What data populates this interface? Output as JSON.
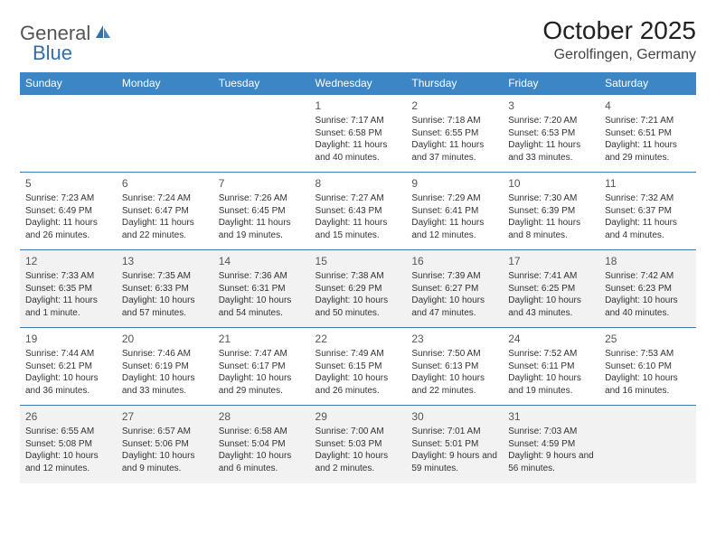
{
  "logo": {
    "word1": "General",
    "word2": "Blue"
  },
  "title": "October 2025",
  "location": "Gerolfingen, Germany",
  "colors": {
    "header_bg": "#3d86c6",
    "header_text": "#ffffff",
    "border": "#3d7ab0",
    "alt_row": "#f2f2f2",
    "logo_gray": "#555555",
    "logo_blue": "#2f6fab"
  },
  "day_headers": [
    "Sunday",
    "Monday",
    "Tuesday",
    "Wednesday",
    "Thursday",
    "Friday",
    "Saturday"
  ],
  "weeks": [
    [
      null,
      null,
      null,
      {
        "n": "1",
        "sr": "Sunrise: 7:17 AM",
        "ss": "Sunset: 6:58 PM",
        "dl": "Daylight: 11 hours and 40 minutes."
      },
      {
        "n": "2",
        "sr": "Sunrise: 7:18 AM",
        "ss": "Sunset: 6:55 PM",
        "dl": "Daylight: 11 hours and 37 minutes."
      },
      {
        "n": "3",
        "sr": "Sunrise: 7:20 AM",
        "ss": "Sunset: 6:53 PM",
        "dl": "Daylight: 11 hours and 33 minutes."
      },
      {
        "n": "4",
        "sr": "Sunrise: 7:21 AM",
        "ss": "Sunset: 6:51 PM",
        "dl": "Daylight: 11 hours and 29 minutes."
      }
    ],
    [
      {
        "n": "5",
        "sr": "Sunrise: 7:23 AM",
        "ss": "Sunset: 6:49 PM",
        "dl": "Daylight: 11 hours and 26 minutes."
      },
      {
        "n": "6",
        "sr": "Sunrise: 7:24 AM",
        "ss": "Sunset: 6:47 PM",
        "dl": "Daylight: 11 hours and 22 minutes."
      },
      {
        "n": "7",
        "sr": "Sunrise: 7:26 AM",
        "ss": "Sunset: 6:45 PM",
        "dl": "Daylight: 11 hours and 19 minutes."
      },
      {
        "n": "8",
        "sr": "Sunrise: 7:27 AM",
        "ss": "Sunset: 6:43 PM",
        "dl": "Daylight: 11 hours and 15 minutes."
      },
      {
        "n": "9",
        "sr": "Sunrise: 7:29 AM",
        "ss": "Sunset: 6:41 PM",
        "dl": "Daylight: 11 hours and 12 minutes."
      },
      {
        "n": "10",
        "sr": "Sunrise: 7:30 AM",
        "ss": "Sunset: 6:39 PM",
        "dl": "Daylight: 11 hours and 8 minutes."
      },
      {
        "n": "11",
        "sr": "Sunrise: 7:32 AM",
        "ss": "Sunset: 6:37 PM",
        "dl": "Daylight: 11 hours and 4 minutes."
      }
    ],
    [
      {
        "n": "12",
        "sr": "Sunrise: 7:33 AM",
        "ss": "Sunset: 6:35 PM",
        "dl": "Daylight: 11 hours and 1 minute."
      },
      {
        "n": "13",
        "sr": "Sunrise: 7:35 AM",
        "ss": "Sunset: 6:33 PM",
        "dl": "Daylight: 10 hours and 57 minutes."
      },
      {
        "n": "14",
        "sr": "Sunrise: 7:36 AM",
        "ss": "Sunset: 6:31 PM",
        "dl": "Daylight: 10 hours and 54 minutes."
      },
      {
        "n": "15",
        "sr": "Sunrise: 7:38 AM",
        "ss": "Sunset: 6:29 PM",
        "dl": "Daylight: 10 hours and 50 minutes."
      },
      {
        "n": "16",
        "sr": "Sunrise: 7:39 AM",
        "ss": "Sunset: 6:27 PM",
        "dl": "Daylight: 10 hours and 47 minutes."
      },
      {
        "n": "17",
        "sr": "Sunrise: 7:41 AM",
        "ss": "Sunset: 6:25 PM",
        "dl": "Daylight: 10 hours and 43 minutes."
      },
      {
        "n": "18",
        "sr": "Sunrise: 7:42 AM",
        "ss": "Sunset: 6:23 PM",
        "dl": "Daylight: 10 hours and 40 minutes."
      }
    ],
    [
      {
        "n": "19",
        "sr": "Sunrise: 7:44 AM",
        "ss": "Sunset: 6:21 PM",
        "dl": "Daylight: 10 hours and 36 minutes."
      },
      {
        "n": "20",
        "sr": "Sunrise: 7:46 AM",
        "ss": "Sunset: 6:19 PM",
        "dl": "Daylight: 10 hours and 33 minutes."
      },
      {
        "n": "21",
        "sr": "Sunrise: 7:47 AM",
        "ss": "Sunset: 6:17 PM",
        "dl": "Daylight: 10 hours and 29 minutes."
      },
      {
        "n": "22",
        "sr": "Sunrise: 7:49 AM",
        "ss": "Sunset: 6:15 PM",
        "dl": "Daylight: 10 hours and 26 minutes."
      },
      {
        "n": "23",
        "sr": "Sunrise: 7:50 AM",
        "ss": "Sunset: 6:13 PM",
        "dl": "Daylight: 10 hours and 22 minutes."
      },
      {
        "n": "24",
        "sr": "Sunrise: 7:52 AM",
        "ss": "Sunset: 6:11 PM",
        "dl": "Daylight: 10 hours and 19 minutes."
      },
      {
        "n": "25",
        "sr": "Sunrise: 7:53 AM",
        "ss": "Sunset: 6:10 PM",
        "dl": "Daylight: 10 hours and 16 minutes."
      }
    ],
    [
      {
        "n": "26",
        "sr": "Sunrise: 6:55 AM",
        "ss": "Sunset: 5:08 PM",
        "dl": "Daylight: 10 hours and 12 minutes."
      },
      {
        "n": "27",
        "sr": "Sunrise: 6:57 AM",
        "ss": "Sunset: 5:06 PM",
        "dl": "Daylight: 10 hours and 9 minutes."
      },
      {
        "n": "28",
        "sr": "Sunrise: 6:58 AM",
        "ss": "Sunset: 5:04 PM",
        "dl": "Daylight: 10 hours and 6 minutes."
      },
      {
        "n": "29",
        "sr": "Sunrise: 7:00 AM",
        "ss": "Sunset: 5:03 PM",
        "dl": "Daylight: 10 hours and 2 minutes."
      },
      {
        "n": "30",
        "sr": "Sunrise: 7:01 AM",
        "ss": "Sunset: 5:01 PM",
        "dl": "Daylight: 9 hours and 59 minutes."
      },
      {
        "n": "31",
        "sr": "Sunrise: 7:03 AM",
        "ss": "Sunset: 4:59 PM",
        "dl": "Daylight: 9 hours and 56 minutes."
      },
      null
    ]
  ]
}
